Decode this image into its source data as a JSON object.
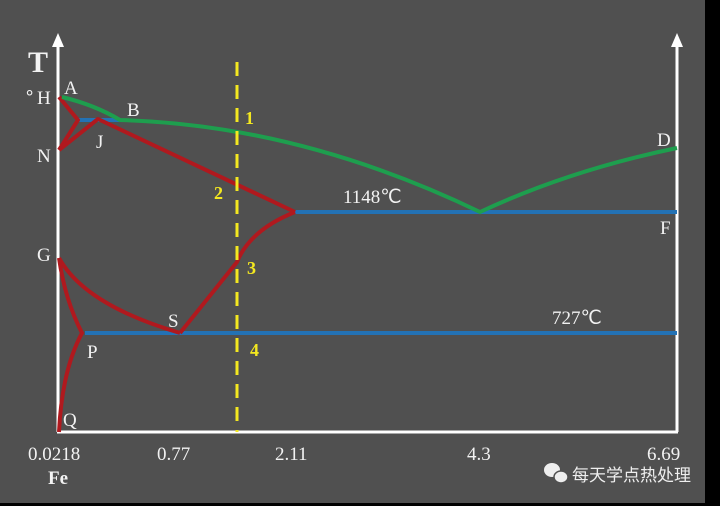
{
  "axis": {
    "y_label": "T",
    "y_unit": "°",
    "x_label": "Fe"
  },
  "x_ticks": [
    "0.0218",
    "0.77",
    "2.11",
    "4.3",
    "6.69"
  ],
  "points": {
    "A": "A",
    "H": "H",
    "B": "B",
    "N": "N",
    "J": "J",
    "G": "G",
    "S": "S",
    "P": "P",
    "Q": "Q",
    "D": "D",
    "F": "F"
  },
  "isotherms": {
    "eutectic": "1148℃",
    "eutectoid": "727℃"
  },
  "alloy_points": [
    "1",
    "2",
    "3",
    "4"
  ],
  "watermark": "每天学点热处理",
  "colors": {
    "background": "#505050",
    "liquidus": "#1e9e4e",
    "solidus": "#b0191e",
    "isotherm": "#2372b5",
    "alloy_line": "#f4e820",
    "axis": "#ffffff"
  }
}
